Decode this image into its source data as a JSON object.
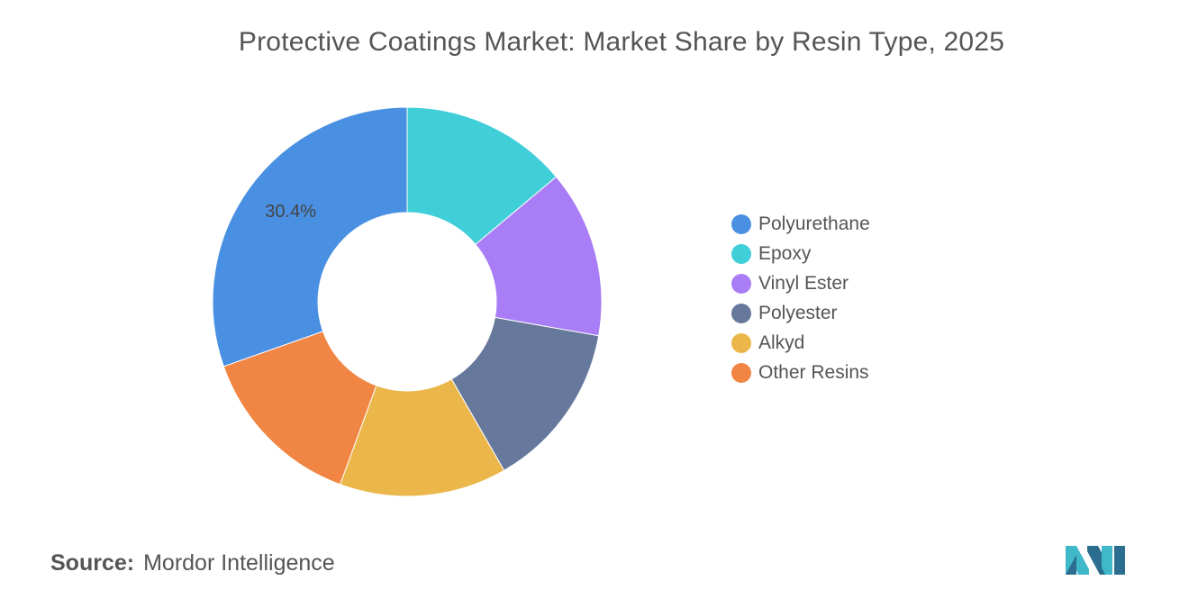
{
  "title": "Protective Coatings Market: Market Share by Resin Type, 2025",
  "source": {
    "label": "Source:",
    "text": "Mordor Intelligence"
  },
  "chart_data": {
    "type": "pie",
    "donut": true,
    "title": "Protective Coatings Market: Market Share by Resin Type, 2025",
    "legend_position": "right",
    "series": [
      {
        "name": "Polyurethane",
        "value": 30.4,
        "color": "#4A90E2",
        "label": "30.4%"
      },
      {
        "name": "Epoxy",
        "value": 13.9,
        "color": "#40CFD9",
        "label": ""
      },
      {
        "name": "Vinyl Ester",
        "value": 13.9,
        "color": "#A97DF5",
        "label": ""
      },
      {
        "name": "Polyester",
        "value": 13.9,
        "color": "#66789B",
        "label": ""
      },
      {
        "name": "Alkyd",
        "value": 13.9,
        "color": "#EBB74A",
        "label": ""
      },
      {
        "name": "Other Resins",
        "value": 14.0,
        "color": "#F18544",
        "label": ""
      }
    ]
  }
}
